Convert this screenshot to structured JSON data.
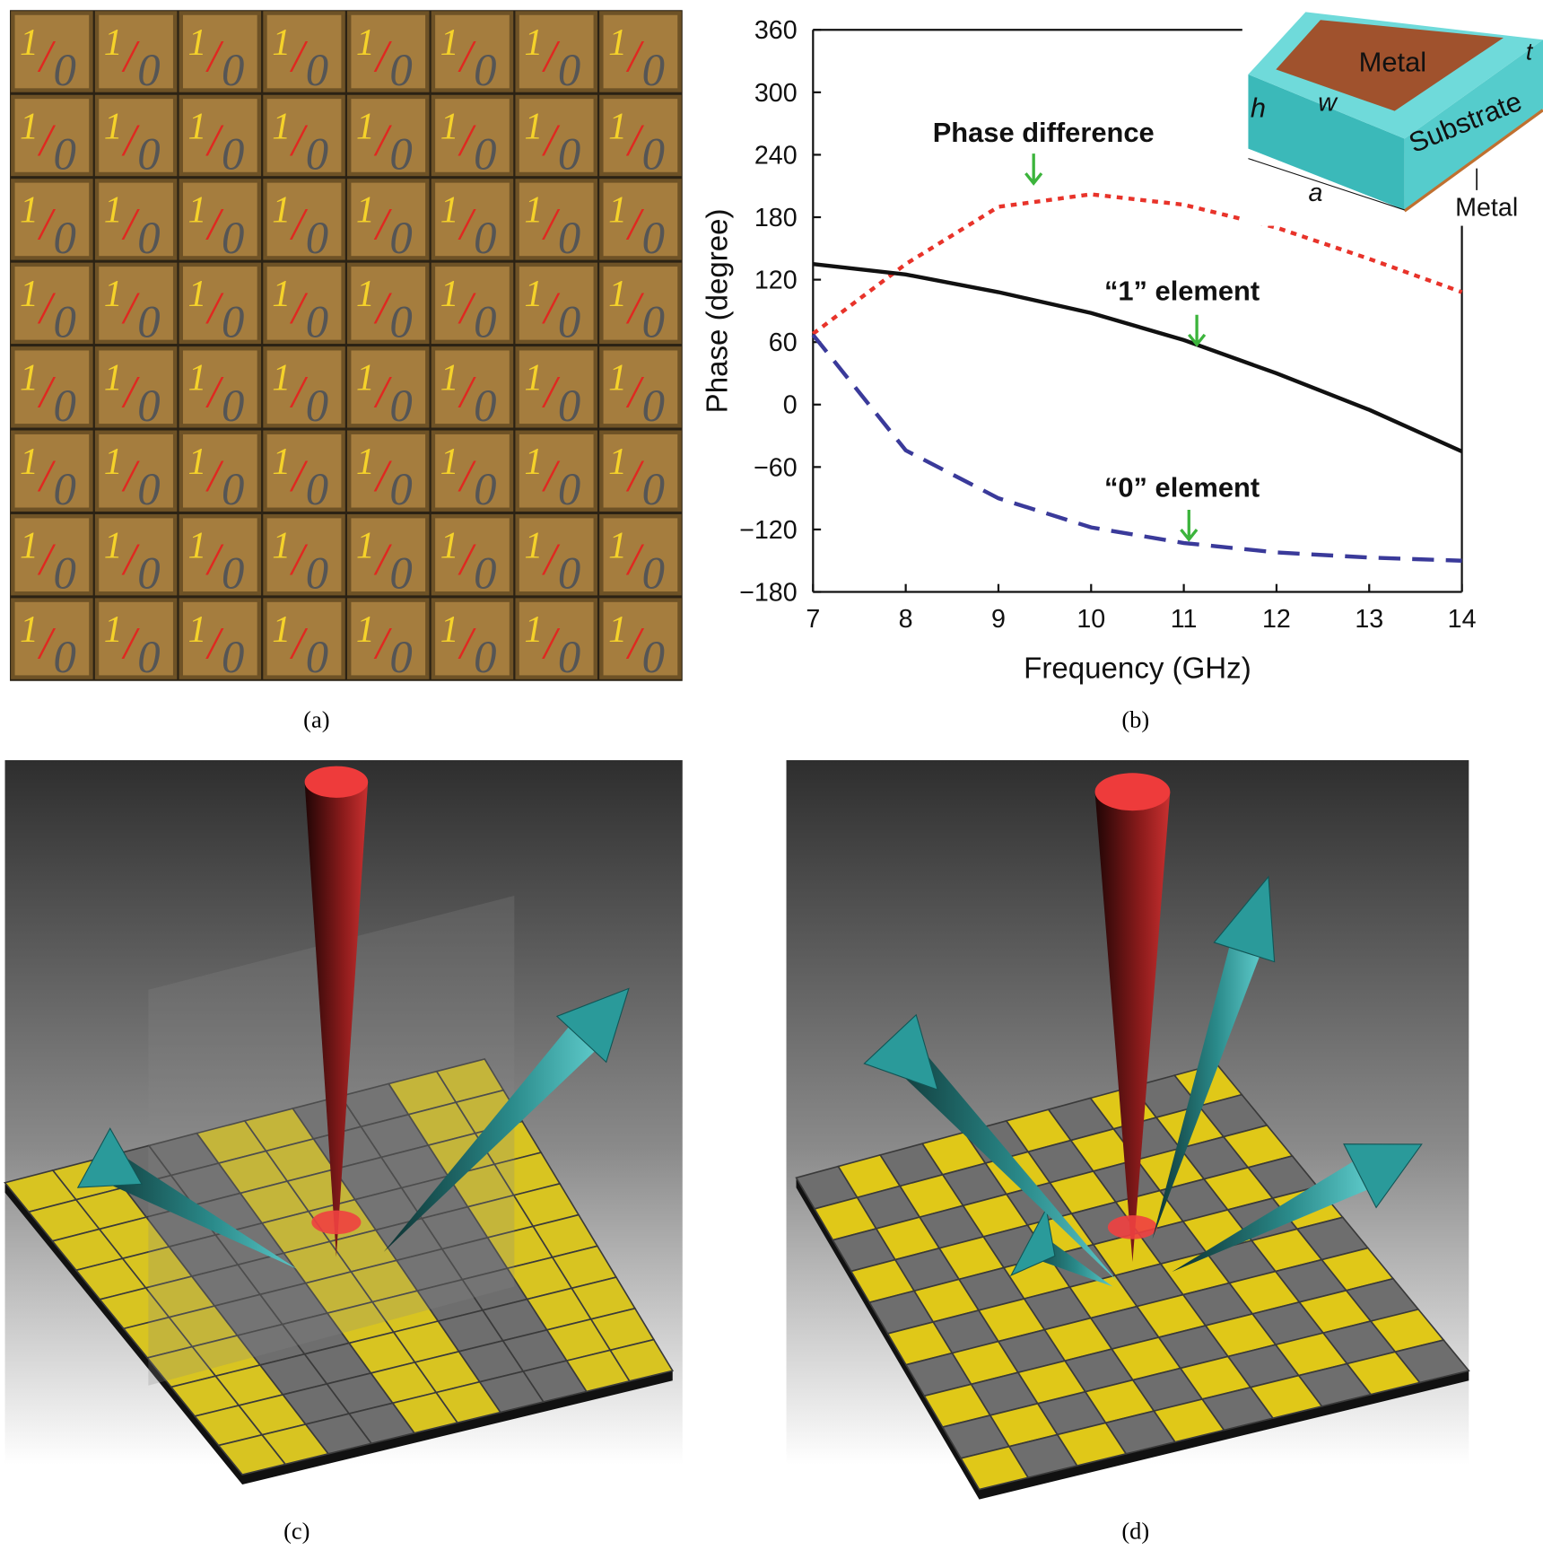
{
  "panel_a": {
    "cell_text": [
      "1",
      "/",
      "0"
    ],
    "caption": "(a)"
  },
  "chart_data": {
    "type": "line",
    "caption": "(b)",
    "x_label": "Frequency (GHz)",
    "y_label": "Phase (degree)",
    "x": [
      7,
      8,
      9,
      10,
      11,
      12,
      13,
      14
    ],
    "xlim": [
      7,
      14
    ],
    "xticks": [
      7,
      8,
      9,
      10,
      11,
      12,
      13,
      14
    ],
    "ylim": [
      -180,
      360
    ],
    "yticks": [
      {
        "value": -180,
        "label": "−180"
      },
      {
        "value": -120,
        "label": "−120"
      },
      {
        "value": -60,
        "label": "−60"
      },
      0,
      60,
      120,
      180,
      240,
      300,
      360
    ],
    "grid": false,
    "series": [
      {
        "name": "Phase difference",
        "color": "#e8332a",
        "line_style": "dotted",
        "values": [
          68,
          135,
          190,
          202,
          192,
          170,
          140,
          108
        ]
      },
      {
        "name": "“1” element",
        "color": "#111111",
        "line_style": "solid",
        "values": [
          135,
          125,
          108,
          88,
          62,
          30,
          -5,
          -45
        ]
      },
      {
        "name": "“0” element",
        "color": "#3a3a9a",
        "line_style": "dashed",
        "values": [
          67,
          -44,
          -90,
          -118,
          -133,
          -142,
          -147,
          -150
        ]
      }
    ]
  },
  "inset": {
    "labels": [
      "Metal",
      "t",
      "h",
      "w",
      "Substrate",
      "a",
      "Metal"
    ]
  },
  "panel_c": {
    "caption": "(c)"
  },
  "panel_d": {
    "caption": "(d)"
  }
}
